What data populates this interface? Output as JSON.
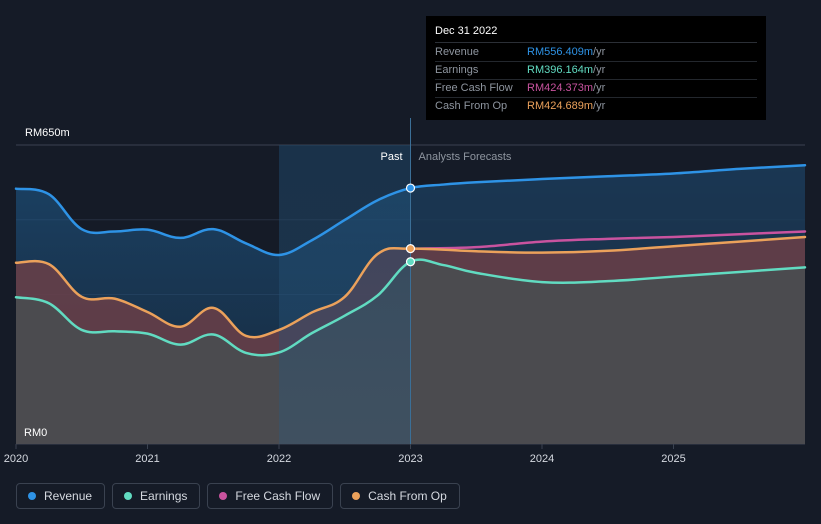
{
  "chart_data": {
    "type": "area",
    "currency_prefix": "RM",
    "y_axis_labels": [
      "RM650m",
      "RM0"
    ],
    "ylim": [
      0,
      650
    ],
    "xlim": [
      2020.0,
      2026.0
    ],
    "x_tick_labels": [
      "2020",
      "2021",
      "2022",
      "2023",
      "2024",
      "2025"
    ],
    "x_ticks": [
      2020,
      2021,
      2022,
      2023,
      2024,
      2025
    ],
    "divider_x": 2023.0,
    "region_labels": {
      "past": "Past",
      "forecast": "Analysts Forecasts"
    },
    "grid": true,
    "legend_position": "bottom-left",
    "series": [
      {
        "name": "Revenue",
        "color": "#2e93e6",
        "points": [
          [
            2020.0,
            555
          ],
          [
            2020.25,
            543
          ],
          [
            2020.5,
            467
          ],
          [
            2020.75,
            462
          ],
          [
            2021.0,
            466
          ],
          [
            2021.25,
            448
          ],
          [
            2021.5,
            467
          ],
          [
            2021.75,
            436
          ],
          [
            2022.0,
            411
          ],
          [
            2022.25,
            443
          ],
          [
            2022.5,
            487
          ],
          [
            2022.75,
            530
          ],
          [
            2023.0,
            556.4
          ]
        ],
        "forecast": [
          [
            2023.0,
            556.4
          ],
          [
            2023.25,
            564
          ],
          [
            2023.5,
            569
          ],
          [
            2024.0,
            576
          ],
          [
            2024.5,
            582
          ],
          [
            2025.0,
            588
          ],
          [
            2025.5,
            598
          ],
          [
            2026.0,
            606
          ]
        ]
      },
      {
        "name": "Earnings",
        "color": "#61dbc1",
        "points": [
          [
            2020.0,
            319
          ],
          [
            2020.25,
            306
          ],
          [
            2020.5,
            248
          ],
          [
            2020.75,
            245
          ],
          [
            2021.0,
            240
          ],
          [
            2021.25,
            216
          ],
          [
            2021.5,
            238
          ],
          [
            2021.75,
            198
          ],
          [
            2022.0,
            199
          ],
          [
            2022.25,
            241
          ],
          [
            2022.5,
            279
          ],
          [
            2022.75,
            323
          ],
          [
            2023.0,
            396.2
          ]
        ],
        "forecast": [
          [
            2023.0,
            396.2
          ],
          [
            2023.25,
            389
          ],
          [
            2023.5,
            372
          ],
          [
            2024.0,
            352
          ],
          [
            2024.5,
            354
          ],
          [
            2025.0,
            364
          ],
          [
            2025.5,
            374
          ],
          [
            2026.0,
            384
          ]
        ]
      },
      {
        "name": "Free Cash Flow",
        "color": "#c9539f",
        "points": [
          [
            2020.0,
            394
          ],
          [
            2020.25,
            391
          ],
          [
            2020.5,
            320
          ],
          [
            2020.75,
            316
          ],
          [
            2021.0,
            287
          ],
          [
            2021.25,
            255
          ],
          [
            2021.5,
            296
          ],
          [
            2021.75,
            235
          ],
          [
            2022.0,
            248
          ],
          [
            2022.25,
            286
          ],
          [
            2022.5,
            320
          ],
          [
            2022.75,
            413
          ],
          [
            2023.0,
            424.4
          ]
        ],
        "forecast": [
          [
            2023.0,
            424.4
          ],
          [
            2023.5,
            428
          ],
          [
            2024.0,
            440
          ],
          [
            2024.5,
            446
          ],
          [
            2025.0,
            450
          ],
          [
            2025.5,
            456
          ],
          [
            2026.0,
            462
          ]
        ]
      },
      {
        "name": "Cash From Op",
        "color": "#eba15b",
        "points": [
          [
            2020.0,
            394
          ],
          [
            2020.25,
            391
          ],
          [
            2020.5,
            320
          ],
          [
            2020.75,
            316
          ],
          [
            2021.0,
            287
          ],
          [
            2021.25,
            255
          ],
          [
            2021.5,
            296
          ],
          [
            2021.75,
            235
          ],
          [
            2022.0,
            248
          ],
          [
            2022.25,
            286
          ],
          [
            2022.5,
            320
          ],
          [
            2022.75,
            413
          ],
          [
            2023.0,
            424.7
          ]
        ],
        "forecast": [
          [
            2023.0,
            424.7
          ],
          [
            2023.5,
            419
          ],
          [
            2024.0,
            416
          ],
          [
            2024.5,
            420
          ],
          [
            2025.0,
            430
          ],
          [
            2025.5,
            440
          ],
          [
            2026.0,
            450
          ]
        ]
      }
    ],
    "tooltip": {
      "date": "Dec 31 2022",
      "unit": " /yr",
      "rows": [
        {
          "label": "Revenue",
          "value": "RM556.409m",
          "color": "#2e93e6"
        },
        {
          "label": "Earnings",
          "value": "RM396.164m",
          "color": "#61dbc1"
        },
        {
          "label": "Free Cash Flow",
          "value": "RM424.373m",
          "color": "#c9539f"
        },
        {
          "label": "Cash From Op",
          "value": "RM424.689m",
          "color": "#eba15b"
        }
      ]
    }
  },
  "legend": [
    {
      "label": "Revenue",
      "color": "#2e93e6"
    },
    {
      "label": "Earnings",
      "color": "#61dbc1"
    },
    {
      "label": "Free Cash Flow",
      "color": "#c9539f"
    },
    {
      "label": "Cash From Op",
      "color": "#eba15b"
    }
  ]
}
